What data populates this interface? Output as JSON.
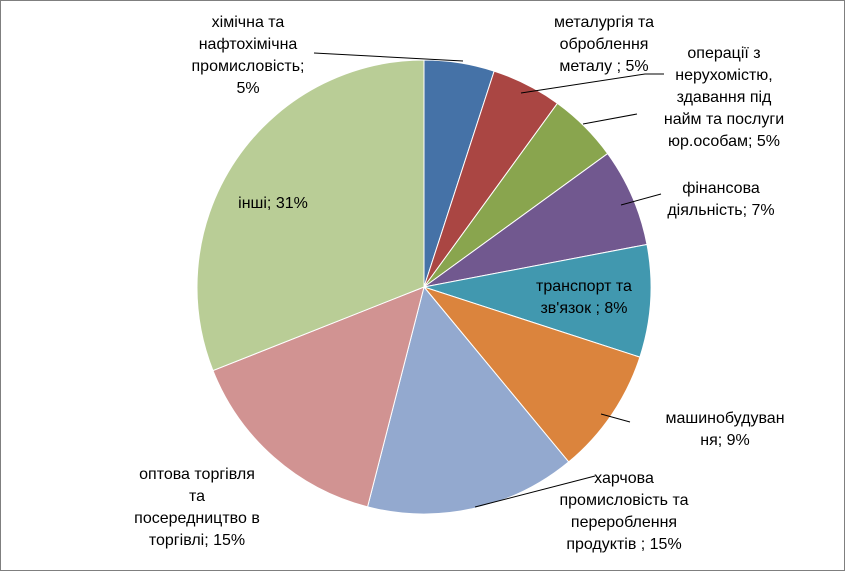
{
  "chart_data": {
    "type": "pie",
    "title": "",
    "slices": [
      {
        "label_lines": [
          "хімічна та",
          "нафтохімічна",
          "промисловість;",
          "5%"
        ],
        "label": "хімічна та нафтохімічна промисловість",
        "value": 5,
        "color": "#4572a7"
      },
      {
        "label_lines": [
          "металургія та",
          "оброблення",
          "металу ; 5%"
        ],
        "label": "металургія та оброблення металу",
        "value": 5,
        "color": "#aa4643"
      },
      {
        "label_lines": [
          "операції з",
          "нерухомістю,",
          "здавання під",
          "найм та послуги",
          "юр.особам; 5%"
        ],
        "label": "операції з нерухомістю, здавання під найм та послуги юр.особам",
        "value": 5,
        "color": "#89a54e"
      },
      {
        "label_lines": [
          "фінансова",
          "діяльність; 7%"
        ],
        "label": "фінансова діяльність",
        "value": 7,
        "color": "#71588f"
      },
      {
        "label_lines": [
          "транспорт та",
          "зв'язок ; 8%"
        ],
        "label": "транспорт та зв'язок",
        "value": 8,
        "color": "#4198af"
      },
      {
        "label_lines": [
          "машинобудуван",
          "ня; 9%"
        ],
        "label": "машинобудування",
        "value": 9,
        "color": "#db843d"
      },
      {
        "label_lines": [
          "харчова",
          "промисловість та",
          "перероблення",
          "продуктів ; 15%"
        ],
        "label": "харчова промисловість та перероблення продуктів",
        "value": 15,
        "color": "#93a9cf"
      },
      {
        "label_lines": [
          "оптова торгівля",
          "та",
          "посередництво в",
          "торгівлі; 15%"
        ],
        "label": "оптова торгівля та посередництво в торгівлі",
        "value": 15,
        "color": "#d19392"
      },
      {
        "label_lines": [
          "інші; 31%"
        ],
        "label": "інші",
        "value": 31,
        "color": "#b9cd96"
      }
    ]
  }
}
